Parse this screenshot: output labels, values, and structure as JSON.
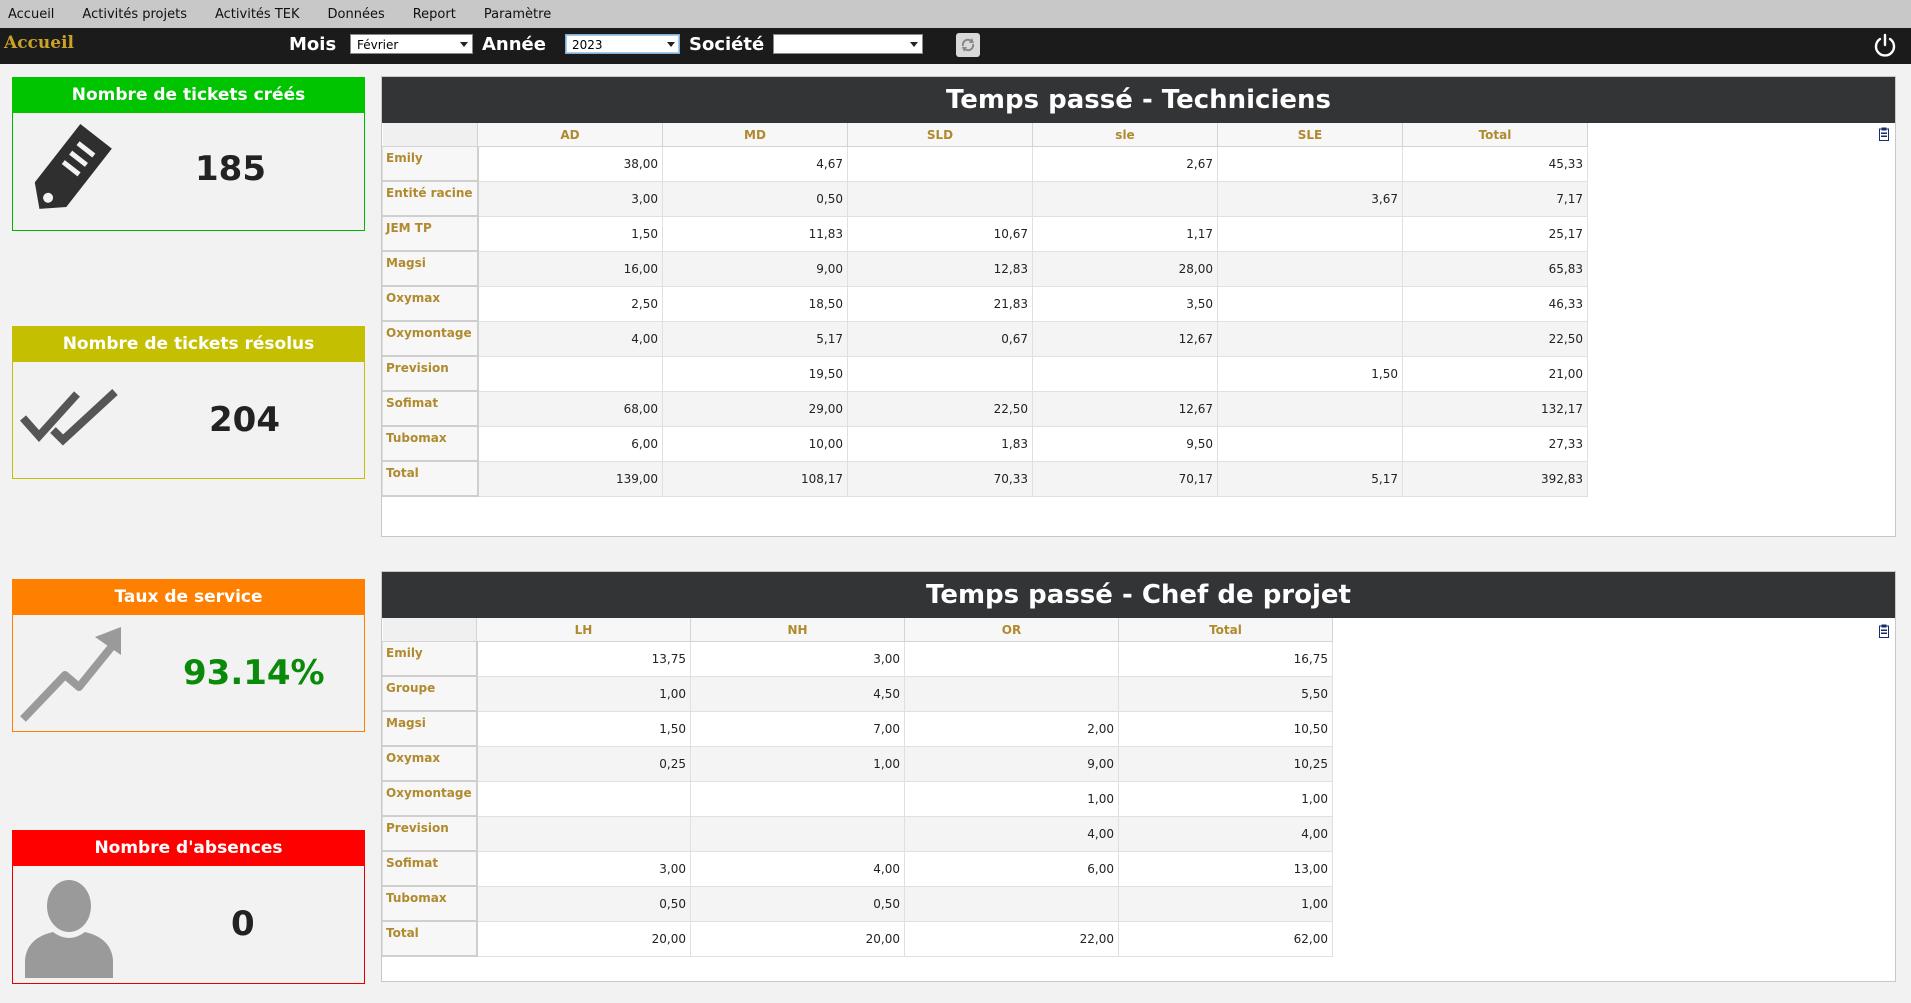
{
  "menu": [
    "Accueil",
    "Activités projets",
    "Activités TEK",
    "Données",
    "Report",
    "Paramètre"
  ],
  "toolbar": {
    "home": "Accueil",
    "mois_label": "Mois",
    "mois_value": "Février",
    "annee_label": "Année",
    "annee_value": "2023",
    "societe_label": "Société",
    "societe_value": ""
  },
  "kpis": {
    "created": {
      "title": "Nombre de tickets créés",
      "value": "185",
      "color": "#00c400",
      "icon": "tag-icon"
    },
    "resolved": {
      "title": "Nombre de tickets résolus",
      "value": "204",
      "color": "#c4bf00",
      "icon": "double-check-icon"
    },
    "service": {
      "title": "Taux de service",
      "value": "93.14%",
      "color": "#ff8000",
      "icon": "trend-up-icon"
    },
    "absences": {
      "title": "Nombre d'absences",
      "value": "0",
      "color": "#ff0000",
      "icon": "person-icon"
    }
  },
  "tech": {
    "title": "Temps passé - Techniciens",
    "columns": [
      "AD",
      "MD",
      "SLD",
      "sle",
      "SLE",
      "Total"
    ],
    "rows": [
      {
        "name": "Emily",
        "cells": [
          "38,00",
          "4,67",
          "",
          "2,67",
          "",
          "45,33"
        ]
      },
      {
        "name": "Entité racine",
        "cells": [
          "3,00",
          "0,50",
          "",
          "",
          "3,67",
          "7,17"
        ]
      },
      {
        "name": "JEM TP",
        "cells": [
          "1,50",
          "11,83",
          "10,67",
          "1,17",
          "",
          "25,17"
        ]
      },
      {
        "name": "Magsi",
        "cells": [
          "16,00",
          "9,00",
          "12,83",
          "28,00",
          "",
          "65,83"
        ]
      },
      {
        "name": "Oxymax",
        "cells": [
          "2,50",
          "18,50",
          "21,83",
          "3,50",
          "",
          "46,33"
        ]
      },
      {
        "name": "Oxymontage",
        "cells": [
          "4,00",
          "5,17",
          "0,67",
          "12,67",
          "",
          "22,50"
        ]
      },
      {
        "name": "Prevision",
        "cells": [
          "",
          "19,50",
          "",
          "",
          "1,50",
          "21,00"
        ]
      },
      {
        "name": "Sofimat",
        "cells": [
          "68,00",
          "29,00",
          "22,50",
          "12,67",
          "",
          "132,17"
        ]
      },
      {
        "name": "Tubomax",
        "cells": [
          "6,00",
          "10,00",
          "1,83",
          "9,50",
          "",
          "27,33"
        ]
      },
      {
        "name": "Total",
        "cells": [
          "139,00",
          "108,17",
          "70,33",
          "70,17",
          "5,17",
          "392,83"
        ]
      }
    ]
  },
  "chef": {
    "title": "Temps passé - Chef de projet",
    "columns": [
      "LH",
      "NH",
      "OR",
      "Total"
    ],
    "rows": [
      {
        "name": "Emily",
        "cells": [
          "13,75",
          "3,00",
          "",
          "16,75"
        ]
      },
      {
        "name": "Groupe",
        "cells": [
          "1,00",
          "4,50",
          "",
          "5,50"
        ]
      },
      {
        "name": "Magsi",
        "cells": [
          "1,50",
          "7,00",
          "2,00",
          "10,50"
        ]
      },
      {
        "name": "Oxymax",
        "cells": [
          "0,25",
          "1,00",
          "9,00",
          "10,25"
        ]
      },
      {
        "name": "Oxymontage",
        "cells": [
          "",
          "",
          "1,00",
          "1,00"
        ]
      },
      {
        "name": "Prevision",
        "cells": [
          "",
          "",
          "4,00",
          "4,00"
        ]
      },
      {
        "name": "Sofimat",
        "cells": [
          "3,00",
          "4,00",
          "6,00",
          "13,00"
        ]
      },
      {
        "name": "Tubomax",
        "cells": [
          "0,50",
          "0,50",
          "",
          "1,00"
        ]
      },
      {
        "name": "Total",
        "cells": [
          "20,00",
          "20,00",
          "22,00",
          "62,00"
        ]
      }
    ]
  }
}
